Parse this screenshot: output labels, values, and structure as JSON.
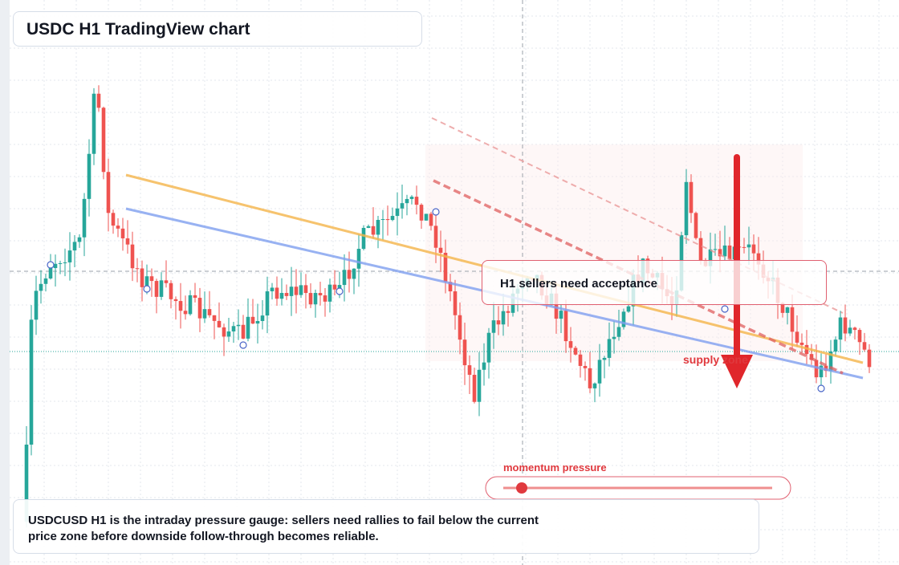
{
  "title": "USDC H1 TradingView chart",
  "annotation": {
    "label": "H1 sellers need acceptance"
  },
  "zone_label": "supply zone",
  "gauge": {
    "label": "momentum pressure"
  },
  "caption": "USDCUSD H1 is the intraday pressure gauge: sellers need rallies to fail below the current price zone before downside follow-through becomes reliable."
}
